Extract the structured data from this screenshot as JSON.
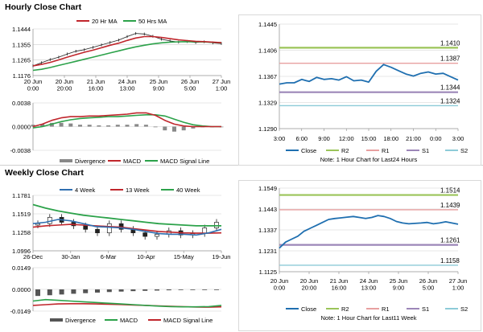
{
  "sections": {
    "hourly_title": "Hourly Close Chart",
    "weekly_title": "Weekly Close Chart"
  },
  "colors": {
    "close": "#1f6fb0",
    "ma20": "#c0262c",
    "ma50": "#2ca24a",
    "r2": "#9bc459",
    "r1": "#e8a0a0",
    "s1": "#9c86b8",
    "s2": "#8dcbd8",
    "macd": "#c0262c",
    "signal": "#2ca24a",
    "divergence": "#888888",
    "wk4": "#2f6fb0",
    "wk13": "#c0262c",
    "wk40": "#2ca24a",
    "grid": "#cfcfcf"
  },
  "chart_data": [
    {
      "id": "hourly-price",
      "type": "line",
      "legend": [
        "20 Hr MA",
        "50 Hrs MA"
      ],
      "y_ticks": [
        "1.1444",
        "1.1355",
        "1.1265",
        "1.1176"
      ],
      "x_ticks": [
        "20 Jun\n0:00",
        "20 Jun\n20:00",
        "21 Jun\n16:00",
        "24 Jun\n13:00",
        "25 Jun\n9:00",
        "26 Jun\n5:00",
        "27 Jun\n1:00"
      ],
      "ylim": [
        1.1176,
        1.1444
      ],
      "series": [
        {
          "name": "Close",
          "values": [
            1.1232,
            1.125,
            1.1268,
            1.1282,
            1.13,
            1.1316,
            1.1325,
            1.1338,
            1.1352,
            1.1366,
            1.138,
            1.14,
            1.1418,
            1.1415,
            1.1402,
            1.1385,
            1.1375,
            1.1368,
            1.1372,
            1.1366,
            1.137,
            1.1364,
            1.136
          ]
        },
        {
          "name": "20 Hr MA",
          "values": [
            1.1232,
            1.124,
            1.1252,
            1.1266,
            1.1282,
            1.1296,
            1.131,
            1.1322,
            1.1336,
            1.135,
            1.1362,
            1.1378,
            1.1392,
            1.14,
            1.14,
            1.1395,
            1.1388,
            1.1381,
            1.1377,
            1.1373,
            1.1371,
            1.1368,
            1.1365
          ]
        },
        {
          "name": "50 Hrs MA",
          "values": [
            1.1206,
            1.1212,
            1.1222,
            1.1234,
            1.1246,
            1.1258,
            1.127,
            1.1282,
            1.1294,
            1.1306,
            1.1318,
            1.133,
            1.1341,
            1.135,
            1.1358,
            1.1364,
            1.1368,
            1.137,
            1.1371,
            1.137,
            1.1369,
            1.1367,
            1.1365
          ]
        }
      ]
    },
    {
      "id": "hourly-macd",
      "type": "line",
      "legend": [
        "Divergence",
        "MACD",
        "MACD Signal Line"
      ],
      "y_ticks": [
        "0.0038",
        "0.0000",
        "-0.0038"
      ],
      "ylim": [
        -0.0038,
        0.0038
      ],
      "series": [
        {
          "name": "MACD",
          "values": [
            0.0,
            0.0004,
            0.001,
            0.0014,
            0.0016,
            0.0016,
            0.0017,
            0.0017,
            0.0018,
            0.0019,
            0.002,
            0.0022,
            0.0022,
            0.0018,
            0.001,
            0.0004,
            0.0001,
            0.0,
            0.0,
            0.0,
            0.0
          ]
        },
        {
          "name": "MACD Signal Line",
          "values": [
            -0.0002,
            0.0,
            0.0004,
            0.0008,
            0.0011,
            0.0013,
            0.0014,
            0.0015,
            0.0016,
            0.0016,
            0.0017,
            0.0018,
            0.0019,
            0.0019,
            0.0017,
            0.0012,
            0.0007,
            0.0003,
            0.0001,
            0.0,
            0.0
          ]
        },
        {
          "name": "Divergence",
          "values": [
            0.0003,
            0.0004,
            0.0006,
            0.0006,
            0.0005,
            0.0003,
            0.0003,
            0.0002,
            0.0002,
            0.0003,
            0.0003,
            0.0004,
            0.0003,
            -0.0001,
            -0.0006,
            -0.0008,
            -0.0006,
            -0.0003,
            -0.0001,
            0.0,
            0.0
          ]
        }
      ]
    },
    {
      "id": "hourly-pivot",
      "type": "line",
      "title_note": "Note: 1 Hour Chart for Last24 Hours",
      "legend": [
        "Close",
        "R2",
        "R1",
        "S1",
        "S2"
      ],
      "y_ticks": [
        "1.1445",
        "1.1406",
        "1.1367",
        "1.1329",
        "1.1290"
      ],
      "x_ticks": [
        "3:00",
        "6:00",
        "9:00",
        "12:00",
        "15:00",
        "18:00",
        "21:00",
        "0:00",
        "3:00"
      ],
      "ylim": [
        1.129,
        1.1445
      ],
      "levels": [
        {
          "name": "R2",
          "value": 1.141,
          "label": "1.1410"
        },
        {
          "name": "R1",
          "value": 1.1387,
          "label": "1.1387"
        },
        {
          "name": "S1",
          "value": 1.1344,
          "label": "1.1344"
        },
        {
          "name": "S2",
          "value": 1.1324,
          "label": "1.1324"
        }
      ],
      "series": [
        {
          "name": "Close",
          "values": [
            1.1356,
            1.1358,
            1.1358,
            1.1363,
            1.136,
            1.1366,
            1.1363,
            1.1364,
            1.1362,
            1.1367,
            1.1361,
            1.1362,
            1.1359,
            1.1375,
            1.1385,
            1.1381,
            1.1376,
            1.1371,
            1.1368,
            1.1372,
            1.1374,
            1.1371,
            1.1372,
            1.1367,
            1.1362
          ]
        }
      ]
    },
    {
      "id": "weekly-price",
      "type": "line",
      "legend": [
        "4 Week",
        "13 Week",
        "40 Week"
      ],
      "y_ticks": [
        "1.1781",
        "1.1519",
        "1.1258",
        "1.0996"
      ],
      "x_ticks": [
        "26-Dec",
        "30-Jan",
        "6-Mar",
        "10-Apr",
        "15-May",
        "19-Jun"
      ],
      "ylim": [
        1.0996,
        1.1781
      ],
      "series": [
        {
          "name": "Close",
          "values": [
            1.138,
            1.147,
            1.14,
            1.135,
            1.13,
            1.125,
            1.138,
            1.13,
            1.125,
            1.12,
            1.123,
            1.128,
            1.122,
            1.124,
            1.132,
            1.14
          ]
        },
        {
          "name": "4 Week",
          "values": [
            1.138,
            1.14,
            1.144,
            1.142,
            1.138,
            1.134,
            1.133,
            1.132,
            1.13,
            1.127,
            1.124,
            1.123,
            1.123,
            1.122,
            1.125,
            1.13
          ]
        },
        {
          "name": "13 Week",
          "values": [
            1.133,
            1.135,
            1.136,
            1.137,
            1.136,
            1.135,
            1.134,
            1.133,
            1.131,
            1.129,
            1.127,
            1.126,
            1.125,
            1.1245,
            1.1245,
            1.125
          ]
        },
        {
          "name": "40 Week",
          "values": [
            1.165,
            1.16,
            1.156,
            1.153,
            1.15,
            1.148,
            1.146,
            1.144,
            1.142,
            1.14,
            1.138,
            1.137,
            1.136,
            1.135,
            1.135,
            1.135
          ]
        }
      ]
    },
    {
      "id": "weekly-macd",
      "type": "line",
      "legend": [
        "Divergence",
        "MACD",
        "MACD Signal Line"
      ],
      "y_ticks": [
        "0.0149",
        "0.0000",
        "-0.0149"
      ],
      "ylim": [
        -0.0149,
        0.0149
      ],
      "series": [
        {
          "name": "MACD",
          "values": [
            -0.008,
            -0.007,
            -0.0075,
            -0.008,
            -0.0085,
            -0.009,
            -0.0095,
            -0.01,
            -0.0105,
            -0.011,
            -0.0115,
            -0.0118,
            -0.012,
            -0.012,
            -0.0118,
            -0.011
          ]
        },
        {
          "name": "MACD Signal Line",
          "values": [
            -0.011,
            -0.0105,
            -0.01,
            -0.0098,
            -0.0098,
            -0.01,
            -0.0102,
            -0.0104,
            -0.0107,
            -0.011,
            -0.0113,
            -0.0116,
            -0.0119,
            -0.0121,
            -0.0122,
            -0.012
          ]
        },
        {
          "name": "Divergence",
          "values": [
            -0.0045,
            -0.004,
            -0.0035,
            -0.003,
            -0.0026,
            -0.0022,
            -0.0018,
            -0.0015,
            -0.0012,
            -0.001,
            -0.0008,
            -0.0006,
            -0.0004,
            -0.0003,
            -0.0002,
            -0.0001
          ]
        }
      ]
    },
    {
      "id": "weekly-pivot",
      "type": "line",
      "title_note": "Note: 1 Hour Chart for Last11 Week",
      "legend": [
        "Close",
        "R2",
        "R1",
        "S1",
        "S2"
      ],
      "y_ticks": [
        "1.1549",
        "1.1443",
        "1.1337",
        "1.1231",
        "1.1125"
      ],
      "x_ticks": [
        "20 Jun\n0:00",
        "20 Jun\n20:00",
        "21 Jun\n16:00",
        "24 Jun\n13:00",
        "25 Jun\n9:00",
        "26 Jun\n5:00",
        "27 Jun\n1:00"
      ],
      "ylim": [
        1.1125,
        1.1549
      ],
      "levels": [
        {
          "name": "R2",
          "value": 1.1514,
          "label": "1.1514"
        },
        {
          "name": "R1",
          "value": 1.1439,
          "label": "1.1439"
        },
        {
          "name": "S1",
          "value": 1.1261,
          "label": "1.1261"
        },
        {
          "name": "S2",
          "value": 1.1158,
          "label": "1.1158"
        }
      ],
      "series": [
        {
          "name": "Close",
          "values": [
            1.1245,
            1.1275,
            1.129,
            1.1305,
            1.133,
            1.1345,
            1.136,
            1.1375,
            1.139,
            1.1395,
            1.1398,
            1.1402,
            1.1405,
            1.14,
            1.1395,
            1.14,
            1.141,
            1.1405,
            1.1395,
            1.138,
            1.1372,
            1.1368,
            1.137,
            1.1372,
            1.1375,
            1.1368,
            1.1372,
            1.1378,
            1.1372,
            1.1366
          ]
        }
      ]
    }
  ]
}
